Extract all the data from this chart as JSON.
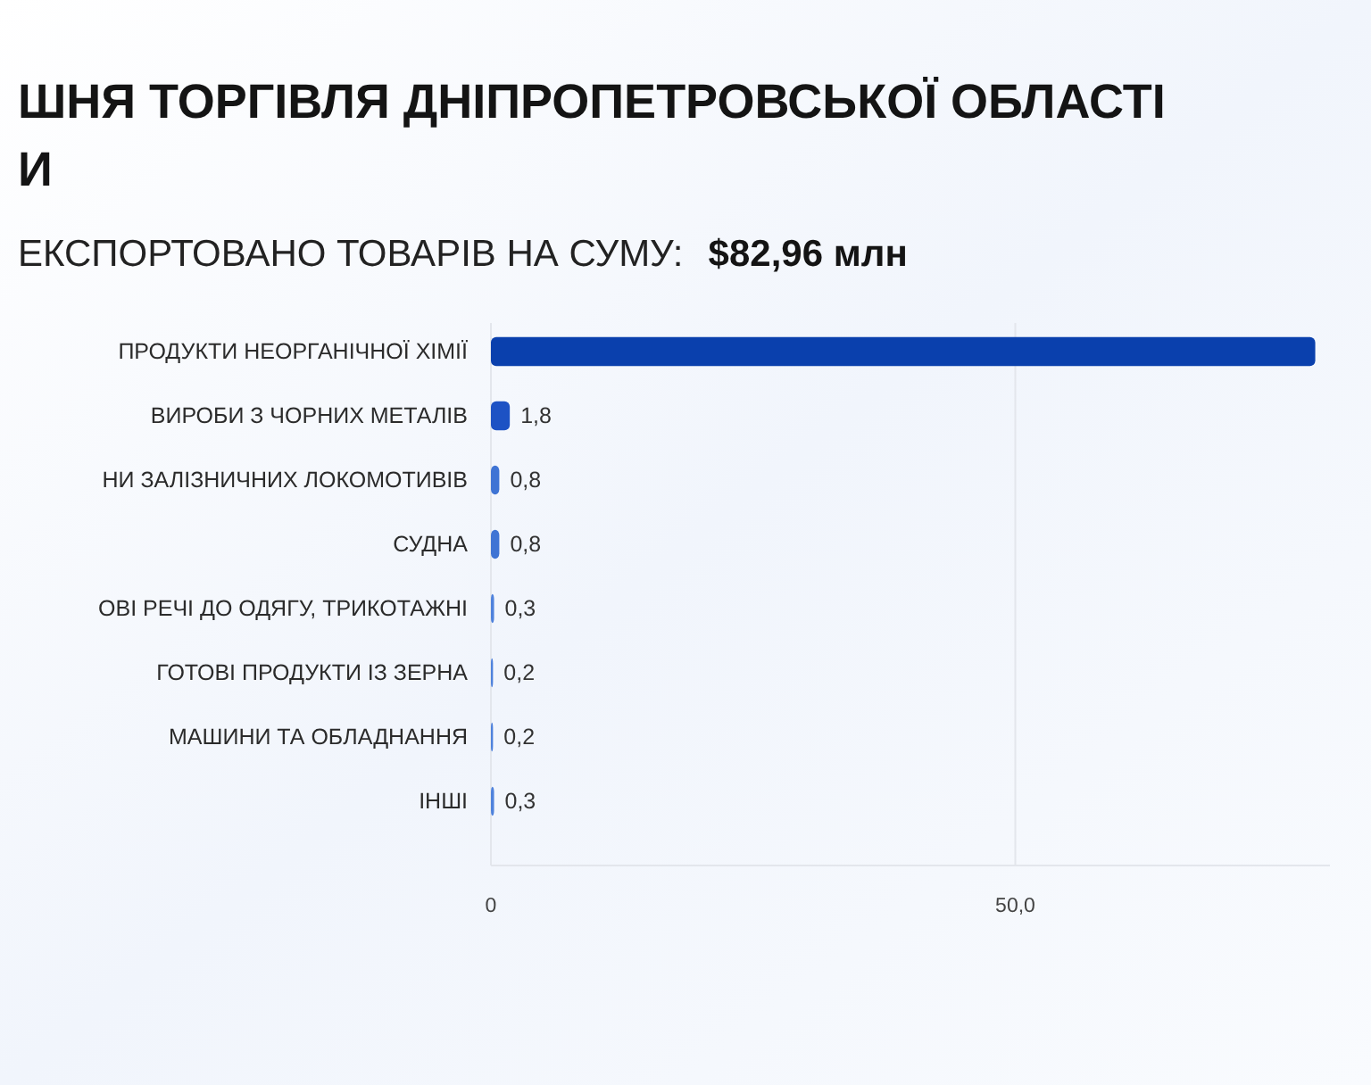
{
  "chart_data": {
    "type": "bar",
    "orientation": "horizontal",
    "title": "ШНЯ ТОРГІВЛЯ ДНІПРОПЕТРОВСЬКОЇ ОБЛАСТІ\nИ",
    "subtitle": "ЕКСПОРТОВАНО ТОВАРІВ НА СУМУ:",
    "annotations": [
      "$82,96 млн"
    ],
    "categories": [
      "ПРОДУКТИ НЕОРГАНІЧНОЇ ХІМІЇ",
      "ВИРОБИ З ЧОРНИХ МЕТАЛІВ",
      "НИ ЗАЛІЗНИЧНИХ ЛОКОМОТИВІВ",
      "СУДНА",
      "ОВІ РЕЧІ ДО ОДЯГУ, ТРИКОТАЖНІ",
      "ГОТОВІ ПРОДУКТИ ІЗ ЗЕРНА",
      "МАШИНИ ТА ОБЛАДНАННЯ",
      "ІНШІ"
    ],
    "values": [
      78.6,
      1.8,
      0.8,
      0.8,
      0.3,
      0.2,
      0.2,
      0.3
    ],
    "colors": [
      "#0a40ad",
      "#1d52c4",
      "#3f74d4",
      "#3f74d4",
      "#4f82dc",
      "#4f82dc",
      "#4f82dc",
      "#4f82dc"
    ],
    "value_labels": [
      null,
      "1,8",
      "0,8",
      "0,8",
      "0,3",
      "0,2",
      "0,2",
      "0,3"
    ],
    "xlim": [
      0,
      80
    ],
    "xticks": [
      0,
      {
        "value": 50,
        "label": "50,0"
      }
    ],
    "grid": "x"
  }
}
